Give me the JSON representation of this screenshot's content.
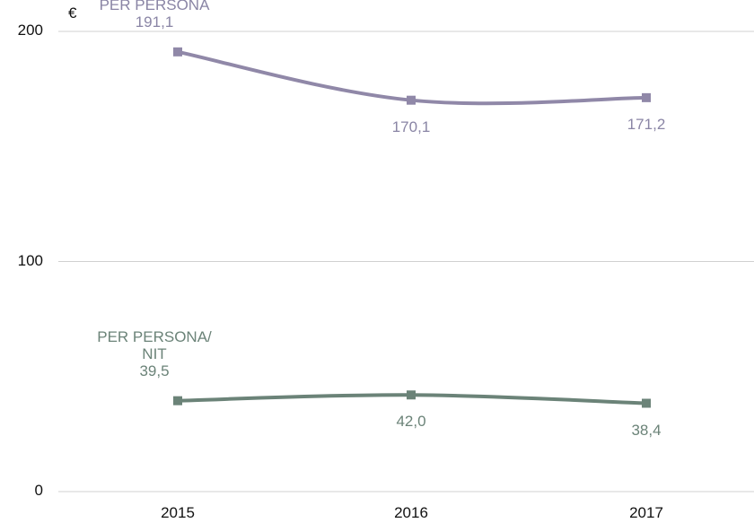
{
  "chart_data": {
    "type": "line",
    "ylabel": "€",
    "categories": [
      "2015",
      "2016",
      "2017"
    ],
    "series": [
      {
        "name": "PER PERSONA",
        "color": "#9088a8",
        "label_color": "#8a85a5",
        "values": [
          191.1,
          170.1,
          171.2
        ],
        "value_labels": [
          "191,1",
          "170,1",
          "171,2"
        ]
      },
      {
        "name": "PER PERSONA/\nNIT",
        "color": "#6b8378",
        "label_color": "#6b8378",
        "values": [
          39.5,
          42.0,
          38.4
        ],
        "value_labels": [
          "39,5",
          "42,0",
          "38,4"
        ]
      }
    ],
    "ylim": [
      0,
      200
    ],
    "yticks": [
      0,
      100,
      200
    ],
    "grid": true
  }
}
